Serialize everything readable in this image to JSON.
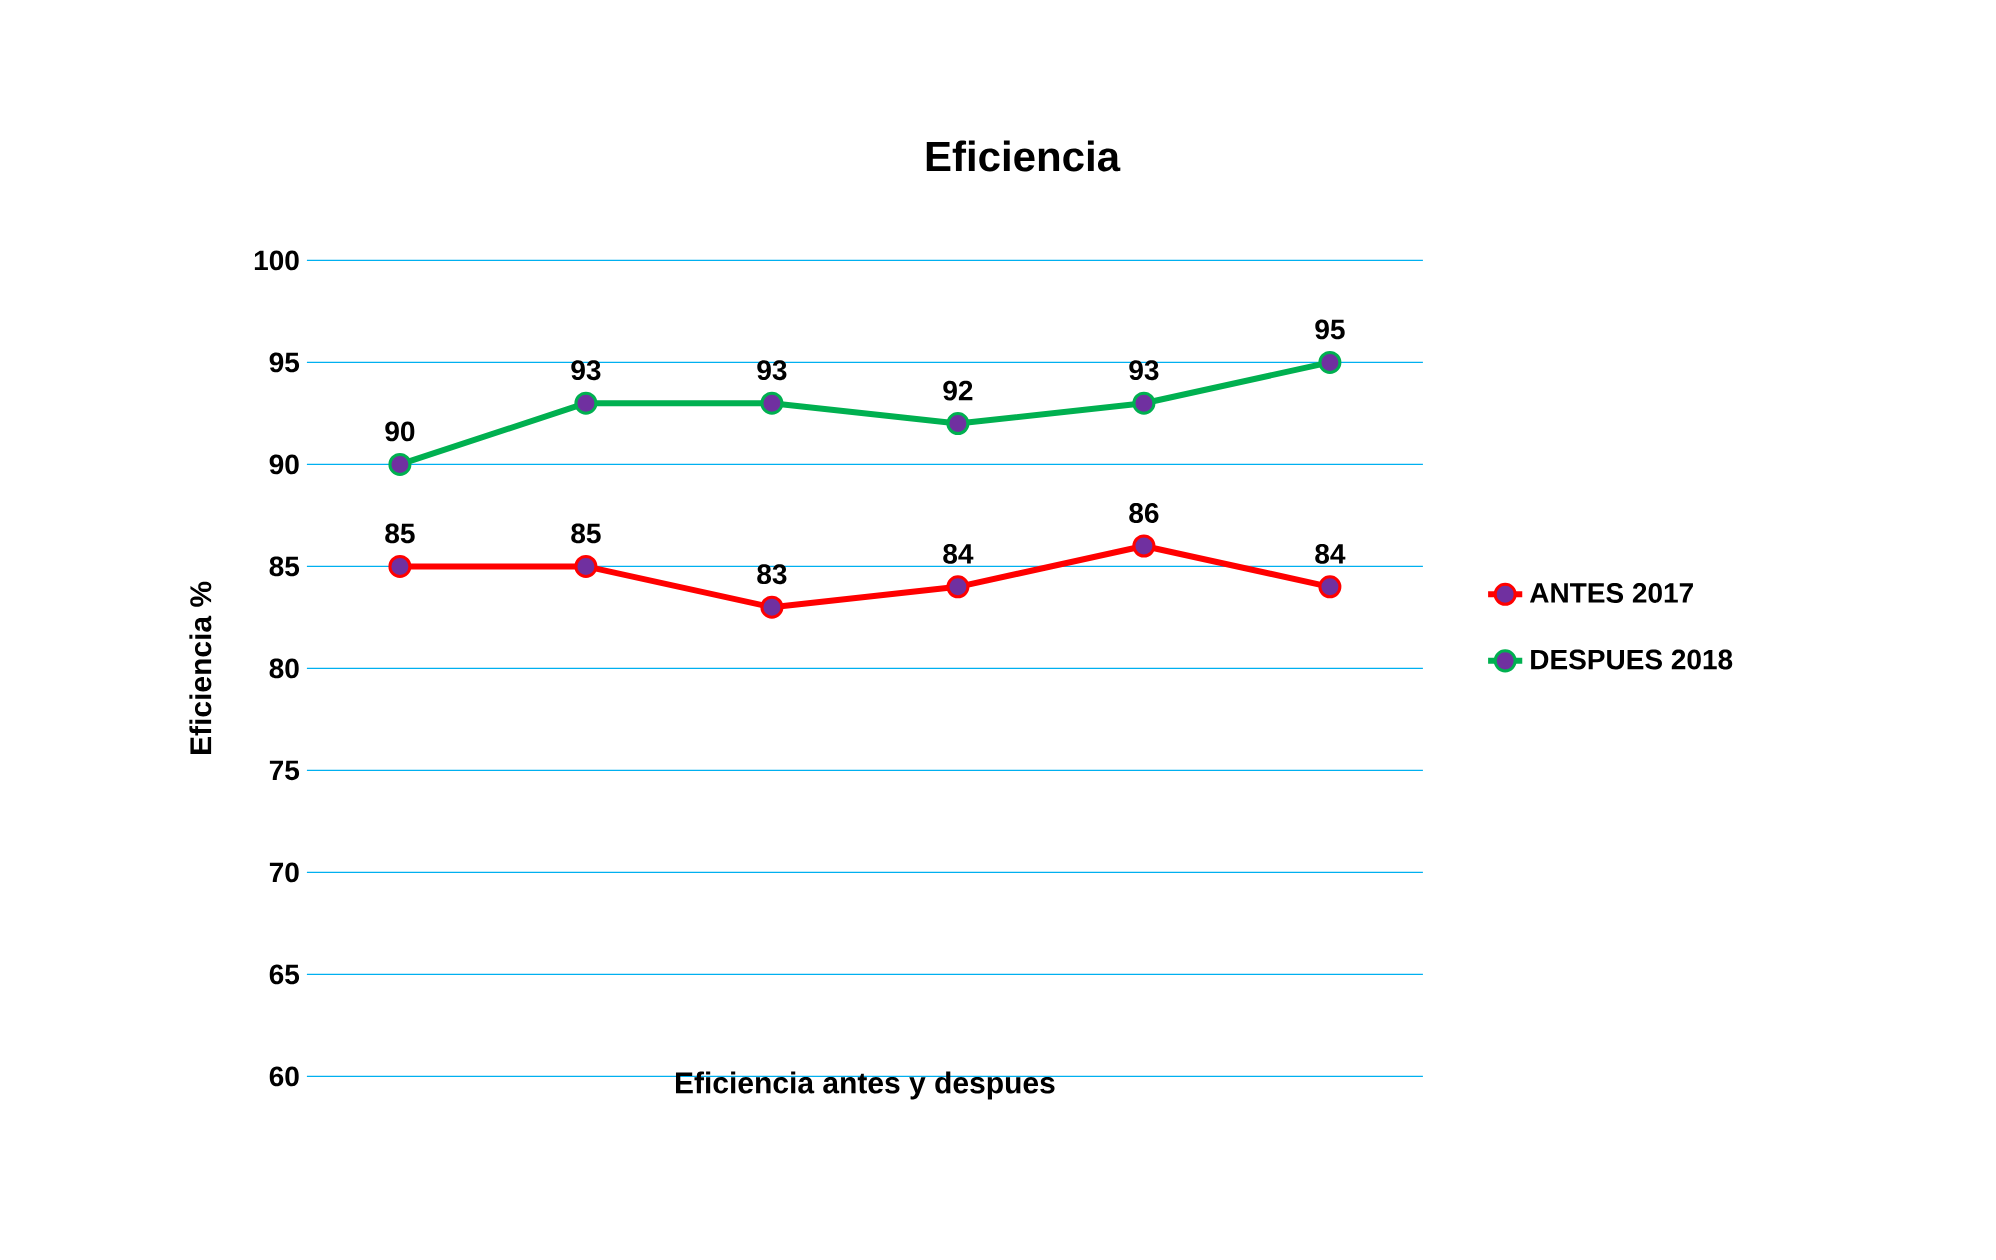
{
  "chart_data": {
    "type": "line",
    "title": "Eficiencia",
    "xlabel": "Eficiencia antes y despues",
    "ylabel": "Eficiencia  %",
    "categories": [
      null,
      null,
      null,
      null,
      null,
      null
    ],
    "series": [
      {
        "name": "ANTES 2017",
        "color": "#ff0000",
        "values": [
          85,
          85,
          83,
          84,
          86,
          84
        ]
      },
      {
        "name": "DESPUES 2018",
        "color": "#00b050",
        "values": [
          90,
          93,
          93,
          92,
          93,
          95
        ]
      }
    ],
    "ylim": [
      60,
      100
    ],
    "yticks": [
      60,
      65,
      70,
      75,
      80,
      85,
      90,
      95,
      100
    ],
    "grid": "y",
    "legend": "right",
    "marker": "circle",
    "data_labels": true,
    "tick_labels": "y"
  }
}
